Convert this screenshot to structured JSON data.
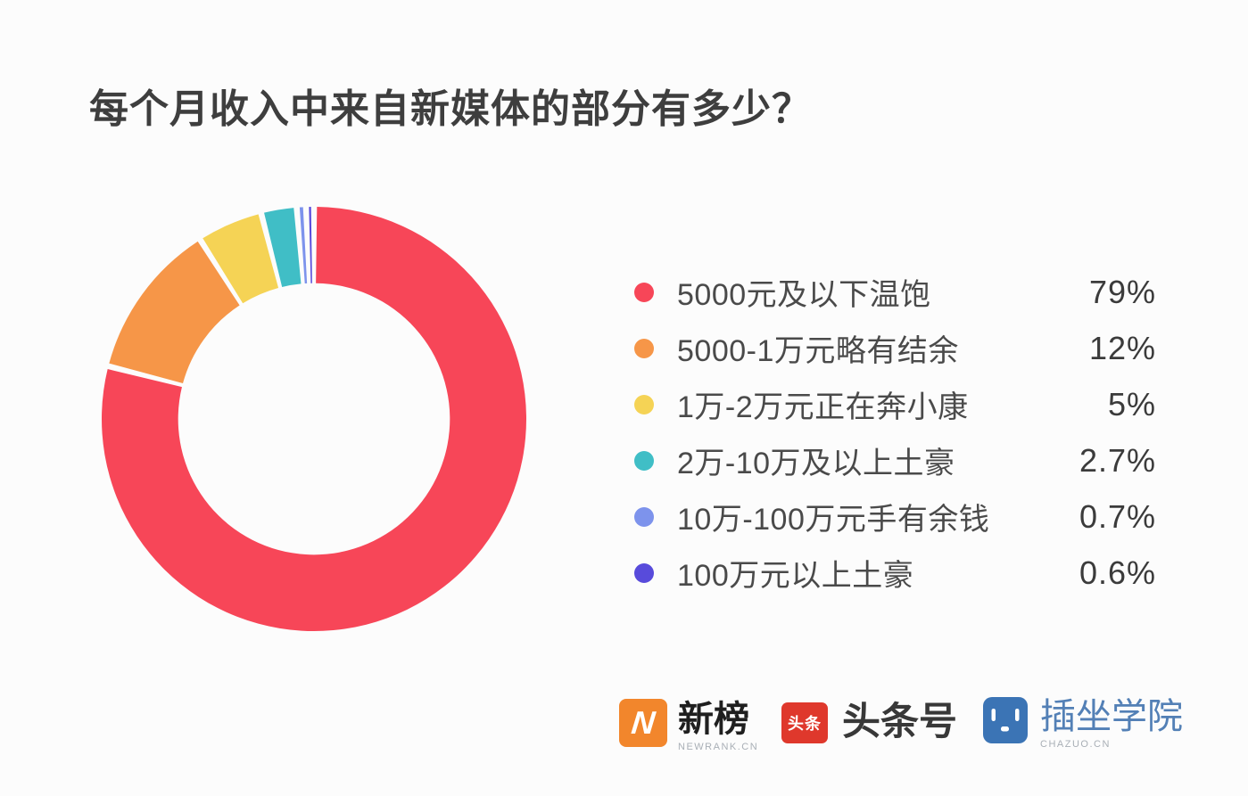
{
  "page": {
    "background": "#FCFCFC"
  },
  "title": "每个月收入中来自新媒体的部分有多少？",
  "chart_data": {
    "type": "pie",
    "subtype": "donut",
    "title": "每个月收入中来自新媒体的部分有多少？",
    "legend_position": "right",
    "direction": "clockwise",
    "start_angle_deg": 0,
    "inner_radius_ratio": 0.64,
    "pad_angle_deg": 1.6,
    "categories": [
      "5000元及以下温饱",
      "5000-1万元略有结余",
      "1万-2万元正在奔小康",
      "2万-10万及以上土豪",
      "10万-100万元手有余钱",
      "100万元以上土豪"
    ],
    "values": [
      79,
      12,
      5,
      2.7,
      0.7,
      0.6
    ],
    "items": [
      {
        "label": "5000元及以下温饱",
        "value": 79,
        "display": "79%",
        "color": "#F74658"
      },
      {
        "label": "5000-1万元略有结余",
        "value": 12,
        "display": "12%",
        "color": "#F69648"
      },
      {
        "label": "1万-2万元正在奔小康",
        "value": 5,
        "display": "5%",
        "color": "#F5D355"
      },
      {
        "label": "2万-10万及以上土豪",
        "value": 2.7,
        "display": "2.7%",
        "color": "#40BEC6"
      },
      {
        "label": "10万-100万元手有余钱",
        "value": 0.7,
        "display": "0.7%",
        "color": "#7D93EC"
      },
      {
        "label": "100万元以上土豪",
        "value": 0.6,
        "display": "0.6%",
        "color": "#584BDB"
      }
    ]
  },
  "footer": {
    "logos": [
      {
        "icon_text": "N",
        "title": "新榜",
        "subtitle": "NEWRANK.CN",
        "icon_color": "#F2862C"
      },
      {
        "icon_text": "头条",
        "title": "头条号",
        "subtitle": "",
        "icon_color": "#DF382C"
      },
      {
        "icon_text": "",
        "title": "插坐学院",
        "subtitle": "CHAZUO.CN",
        "icon_color": "#3B74B5"
      }
    ]
  }
}
